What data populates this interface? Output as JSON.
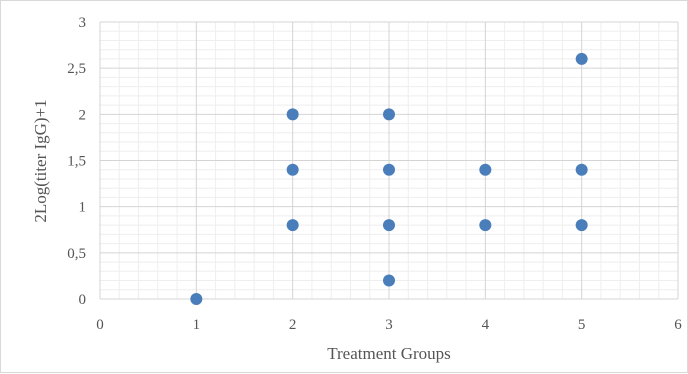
{
  "chart_data": {
    "type": "scatter",
    "xlabel": "Treatment Groups",
    "ylabel": "2Log(titer IgG)+1",
    "xlim": [
      0,
      6
    ],
    "ylim": [
      0,
      3
    ],
    "x_ticks": [
      "0",
      "1",
      "2",
      "3",
      "4",
      "5",
      "6"
    ],
    "y_ticks": [
      "0",
      "0,5",
      "1",
      "1,5",
      "2",
      "2,5",
      "3"
    ],
    "grid": true,
    "legend": "none",
    "marker_color": "#4a7ebb",
    "points": [
      {
        "x": 1,
        "y": 0
      },
      {
        "x": 2,
        "y": 0.8
      },
      {
        "x": 2,
        "y": 1.4
      },
      {
        "x": 2,
        "y": 2.0
      },
      {
        "x": 3,
        "y": 0.2
      },
      {
        "x": 3,
        "y": 0.8
      },
      {
        "x": 3,
        "y": 1.4
      },
      {
        "x": 3,
        "y": 2.0
      },
      {
        "x": 4,
        "y": 0.8
      },
      {
        "x": 4,
        "y": 1.4
      },
      {
        "x": 5,
        "y": 0.8
      },
      {
        "x": 5,
        "y": 1.4
      },
      {
        "x": 5,
        "y": 2.6
      }
    ]
  }
}
